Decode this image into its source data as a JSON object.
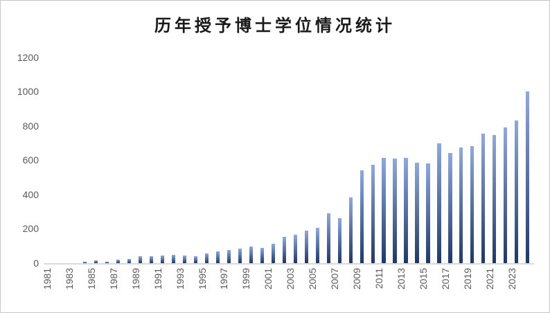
{
  "title": "历年授予博士学位情况统计",
  "colors": {
    "bar_gradient_top": "#8FA9DC",
    "bar_gradient_bottom": "#1F3864",
    "axis_line": "#D9D9D9",
    "tick_label": "#595959",
    "title_text": "#1A1A1A",
    "border": "#C6C6C6"
  },
  "chart_data": {
    "type": "bar",
    "title": "历年授予博士学位情况统计",
    "categories": [
      "1981",
      "1982",
      "1983",
      "1984",
      "1985",
      "1986",
      "1987",
      "1988",
      "1989",
      "1990",
      "1991",
      "1992",
      "1993",
      "1994",
      "1995",
      "1996",
      "1997",
      "1998",
      "1999",
      "2000",
      "2001",
      "2002",
      "2003",
      "2004",
      "2005",
      "2006",
      "2007",
      "2008",
      "2009",
      "2010",
      "2011",
      "2012",
      "2013",
      "2014",
      "2015",
      "2016",
      "2017",
      "2018",
      "2019",
      "2020",
      "2021",
      "2022",
      "2023",
      "2024"
    ],
    "values": [
      0,
      0,
      0,
      8,
      15,
      8,
      20,
      25,
      40,
      40,
      45,
      50,
      45,
      40,
      58,
      67,
      75,
      83,
      95,
      90,
      115,
      155,
      165,
      190,
      205,
      290,
      263,
      385,
      540,
      575,
      613,
      610,
      615,
      585,
      580,
      700,
      640,
      675,
      682,
      755,
      745,
      790,
      830,
      1000
    ],
    "x_tick_labels": [
      "1981",
      "1983",
      "1985",
      "1987",
      "1989",
      "1991",
      "1993",
      "1995",
      "1997",
      "1999",
      "2001",
      "2003",
      "2005",
      "2007",
      "2009",
      "2011",
      "2013",
      "2015",
      "2017",
      "2019",
      "2021",
      "2023"
    ],
    "y_ticks": [
      0,
      200,
      400,
      600,
      800,
      1000,
      1200
    ],
    "ylim": [
      0,
      1200
    ],
    "xlabel": "",
    "ylabel": "",
    "grid": false,
    "legend": null,
    "bar_style": "vertical gradient, light blue top to dark navy bottom"
  }
}
